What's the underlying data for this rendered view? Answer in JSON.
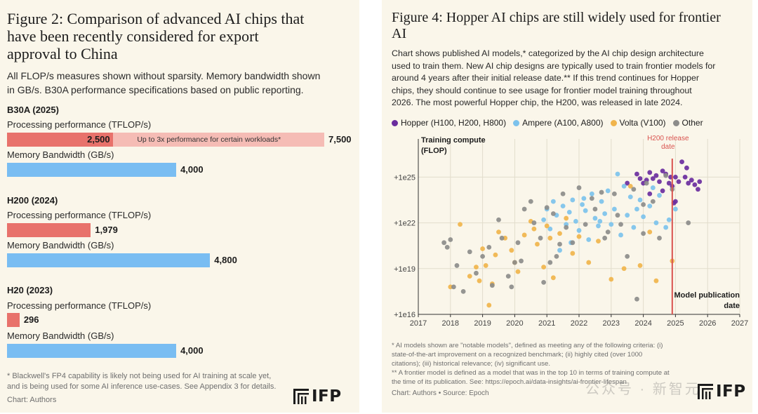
{
  "left": {
    "title_lines": [
      "Figure 2: Comparison of advanced AI chips that",
      "have been recently considered for export",
      "approval to China"
    ],
    "subtitle_lines": [
      "All FLOP/s measures shown without sparsity. Memory bandwidth shown",
      "in GB/s. B30A performance specifications based on public reporting."
    ],
    "footnote_lines": [
      "* Blackwell's FP4 capability is likely not being used for AI training at scale yet,",
      "and is being used for some AI inference use-cases. See Appendix 3 for details."
    ],
    "source": "Chart: Authors",
    "logo_text": "IFP"
  },
  "right": {
    "title_lines": [
      "Figure 4: Hopper AI chips are still widely used for frontier",
      "AI"
    ],
    "subtitle_lines": [
      "Chart shows published AI models,* categorized by the AI chip design architecture",
      "used to train them. New AI chip designs are typically used to train frontier models for",
      "around 4 years after their initial release date.** If this trend continues for Hopper",
      "chips, they should continue to see usage for frontier model training throughout",
      "2026. The most powerful Hopper chip, the H200, was released in late 2024."
    ],
    "footnote_lines": [
      "* AI models shown are \"notable models\", defined as meeting any of the following criteria: (i)",
      "state-of-the-art improvement on a recognized benchmark; (ii) highly cited (over 1000",
      "citations); (iii) historical relevance; (iv) significant use.",
      "** A frontier model is defined as a model that was in the top 10 in terms of training compute at",
      "the time of its publication. See: https://epoch.ai/data-insights/ai-frontier-lifespan"
    ],
    "source": "Chart: Authors • Source: Epoch",
    "logo_text": "IFP",
    "watermark": "公众号 · 新智元"
  },
  "chart_data": [
    {
      "type": "bar",
      "title": "Figure 2: Comparison of advanced AI chips that have been recently considered for export approval to China",
      "max_value": 7500,
      "groups": [
        {
          "name": "B30A (2025)",
          "processing_label": "Processing performance (TFLOP/s)",
          "processing": 2500,
          "processing_display": "2,500",
          "processing_extended": 7500,
          "processing_extended_display": "7,500",
          "extended_note": "Up to 3x performance for certain workloads*",
          "memory_label": "Memory Bandwidth (GB/s)",
          "memory": 4000,
          "memory_display": "4,000"
        },
        {
          "name": "H200 (2024)",
          "processing_label": "Processing performance (TFLOP/s)",
          "processing": 1979,
          "processing_display": "1,979",
          "memory_label": "Memory Bandwidth (GB/s)",
          "memory": 4800,
          "memory_display": "4,800"
        },
        {
          "name": "H20 (2023)",
          "processing_label": "Processing performance (TFLOP/s)",
          "processing": 296,
          "processing_display": "296",
          "memory_label": "Memory Bandwidth (GB/s)",
          "memory": 4000,
          "memory_display": "4,000"
        }
      ],
      "colors": {
        "processing": "#e8726b",
        "extended": "#f5bcb5",
        "memory": "#79bdf2"
      }
    },
    {
      "type": "scatter",
      "title": "Figure 4: Hopper AI chips are still widely used for frontier AI",
      "ylabel": "Training compute (FLOP)",
      "xlabel": "Model publication date",
      "x_ticks": [
        2017,
        2018,
        2019,
        2020,
        2021,
        2022,
        2023,
        2024,
        2025,
        2026,
        2027
      ],
      "y_ticks": [
        {
          "exp": 16,
          "label": "+1e16"
        },
        {
          "exp": 19,
          "label": "+1e19"
        },
        {
          "exp": 22,
          "label": "+1e22"
        },
        {
          "exp": 25,
          "label": "+1e25"
        }
      ],
      "xlim": [
        2017,
        2027
      ],
      "ylim_log10": [
        16,
        27.5
      ],
      "annotation": {
        "x": 2024.9,
        "label_lines": [
          "H200 release",
          "date"
        ]
      },
      "series": [
        {
          "name": "Hopper (H100, H200, H800)",
          "color": "#6a2c9e",
          "points": [
            [
              2023.5,
              24.6
            ],
            [
              2023.8,
              25.2
            ],
            [
              2023.9,
              24.9
            ],
            [
              2024.0,
              24.6
            ],
            [
              2024.1,
              24.8
            ],
            [
              2024.2,
              25.3
            ],
            [
              2024.3,
              24.9
            ],
            [
              2024.4,
              25.1
            ],
            [
              2024.5,
              24.7
            ],
            [
              2024.6,
              25.4
            ],
            [
              2024.7,
              25.2
            ],
            [
              2024.8,
              24.6
            ],
            [
              2024.85,
              25.0
            ],
            [
              2024.9,
              24.4
            ],
            [
              2024.95,
              23.3
            ],
            [
              2025.0,
              25.0
            ],
            [
              2025.1,
              24.7
            ],
            [
              2025.2,
              26.0
            ],
            [
              2025.3,
              25.0
            ],
            [
              2025.35,
              25.6
            ],
            [
              2025.4,
              24.6
            ],
            [
              2025.5,
              24.8
            ],
            [
              2025.6,
              24.5
            ],
            [
              2025.7,
              24.2
            ],
            [
              2025.75,
              24.7
            ],
            [
              2025.0,
              23.4
            ],
            [
              2024.2,
              23.9
            ],
            [
              2024.6,
              24.1
            ]
          ]
        },
        {
          "name": "Ampere (A100, A800)",
          "color": "#7cc2ec",
          "points": [
            [
              2020.9,
              22.2
            ],
            [
              2021.0,
              22.9
            ],
            [
              2021.1,
              21.6
            ],
            [
              2021.2,
              23.4
            ],
            [
              2021.3,
              22.5
            ],
            [
              2021.4,
              20.2
            ],
            [
              2021.5,
              23.1
            ],
            [
              2021.6,
              21.9
            ],
            [
              2021.7,
              22.7
            ],
            [
              2021.8,
              23.5
            ],
            [
              2021.9,
              22.1
            ],
            [
              2022.0,
              21.5
            ],
            [
              2022.1,
              23.2
            ],
            [
              2022.2,
              22.8
            ],
            [
              2022.3,
              20.9
            ],
            [
              2022.4,
              23.9
            ],
            [
              2022.5,
              22.3
            ],
            [
              2022.6,
              21.8
            ],
            [
              2022.7,
              23.4
            ],
            [
              2022.8,
              22.6
            ],
            [
              2022.9,
              24.1
            ],
            [
              2023.0,
              21.9
            ],
            [
              2023.1,
              22.9
            ],
            [
              2023.2,
              25.2
            ],
            [
              2023.3,
              21.2
            ],
            [
              2023.4,
              24.4
            ],
            [
              2023.5,
              22.5
            ],
            [
              2023.6,
              23.7
            ],
            [
              2023.7,
              21.7
            ],
            [
              2023.8,
              22.9
            ],
            [
              2023.9,
              23.5
            ],
            [
              2024.0,
              22.4
            ],
            [
              2024.2,
              23.1
            ],
            [
              2024.3,
              24.3
            ],
            [
              2024.4,
              22.0
            ],
            [
              2024.5,
              23.8
            ],
            [
              2024.7,
              21.7
            ],
            [
              2024.8,
              22.2
            ],
            [
              2025.0,
              22.9
            ],
            [
              2022.15,
              23.6
            ],
            [
              2021.75,
              20.7
            ],
            [
              2022.65,
              22.1
            ]
          ]
        },
        {
          "name": "Volta (V100)",
          "color": "#f0b44b",
          "points": [
            [
              2018.0,
              17.8
            ],
            [
              2018.3,
              21.9
            ],
            [
              2018.6,
              18.5
            ],
            [
              2018.8,
              19.1
            ],
            [
              2019.0,
              20.3
            ],
            [
              2019.1,
              19.2
            ],
            [
              2019.2,
              16.6
            ],
            [
              2019.3,
              18.0
            ],
            [
              2019.5,
              21.4
            ],
            [
              2019.7,
              21.0
            ],
            [
              2019.9,
              20.2
            ],
            [
              2020.0,
              19.4
            ],
            [
              2020.1,
              18.8
            ],
            [
              2020.3,
              21.2
            ],
            [
              2020.5,
              22.1
            ],
            [
              2020.7,
              20.6
            ],
            [
              2020.9,
              19.1
            ],
            [
              2021.0,
              21.8
            ],
            [
              2021.2,
              18.4
            ],
            [
              2021.4,
              21.3
            ],
            [
              2021.6,
              22.3
            ],
            [
              2021.8,
              20.0
            ],
            [
              2022.0,
              21.1
            ],
            [
              2022.3,
              19.4
            ],
            [
              2022.6,
              20.8
            ],
            [
              2023.0,
              18.3
            ],
            [
              2023.4,
              19.0
            ],
            [
              2023.6,
              24.4
            ],
            [
              2023.9,
              19.2
            ],
            [
              2024.2,
              21.4
            ],
            [
              2024.4,
              18.2
            ],
            [
              2024.9,
              19.5
            ],
            [
              2020.6,
              21.6
            ],
            [
              2019.4,
              19.9
            ],
            [
              2018.9,
              18.2
            ],
            [
              2021.1,
              21.0
            ]
          ]
        },
        {
          "name": "Other",
          "color": "#8c8c8a",
          "points": [
            [
              2017.8,
              20.7
            ],
            [
              2017.9,
              20.4
            ],
            [
              2018.0,
              20.9
            ],
            [
              2018.1,
              17.8
            ],
            [
              2018.2,
              19.2
            ],
            [
              2018.4,
              17.5
            ],
            [
              2018.6,
              20.1
            ],
            [
              2018.8,
              18.7
            ],
            [
              2019.0,
              19.8
            ],
            [
              2019.2,
              20.4
            ],
            [
              2019.3,
              17.9
            ],
            [
              2019.5,
              22.2
            ],
            [
              2019.6,
              21.0
            ],
            [
              2019.8,
              18.5
            ],
            [
              2020.0,
              19.4
            ],
            [
              2020.1,
              20.7
            ],
            [
              2020.3,
              22.9
            ],
            [
              2020.5,
              23.4
            ],
            [
              2020.6,
              22.0
            ],
            [
              2020.8,
              21.0
            ],
            [
              2020.9,
              18.1
            ],
            [
              2021.0,
              23.0
            ],
            [
              2021.1,
              19.4
            ],
            [
              2021.2,
              22.6
            ],
            [
              2021.4,
              20.6
            ],
            [
              2021.5,
              23.9
            ],
            [
              2021.6,
              21.7
            ],
            [
              2021.8,
              20.7
            ],
            [
              2022.0,
              24.3
            ],
            [
              2022.2,
              21.9
            ],
            [
              2022.4,
              23.6
            ],
            [
              2022.5,
              22.9
            ],
            [
              2022.7,
              24.0
            ],
            [
              2022.9,
              21.4
            ],
            [
              2023.1,
              23.9
            ],
            [
              2023.3,
              21.9
            ],
            [
              2023.5,
              19.8
            ],
            [
              2023.7,
              24.2
            ],
            [
              2023.8,
              17.0
            ],
            [
              2024.0,
              23.2
            ],
            [
              2024.1,
              24.6
            ],
            [
              2024.3,
              23.4
            ],
            [
              2024.5,
              21.0
            ],
            [
              2024.7,
              25.1
            ],
            [
              2024.9,
              24.2
            ],
            [
              2025.4,
              22.0
            ],
            [
              2019.9,
              17.8
            ],
            [
              2020.2,
              19.5
            ],
            [
              2021.3,
              19.8
            ],
            [
              2022.8,
              21.0
            ],
            [
              2023.2,
              22.5
            ],
            [
              2024.0,
              21.3
            ]
          ]
        }
      ]
    }
  ]
}
